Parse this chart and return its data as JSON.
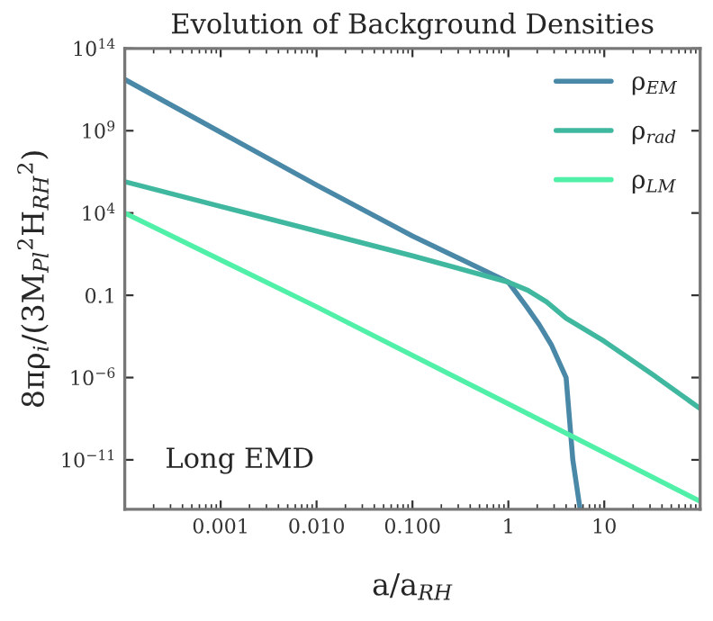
{
  "chart_data": {
    "type": "line",
    "title": "Evolution of Background Densities",
    "xlabel": "a/a$_{RH}$",
    "ylabel": "8πρ$_{i}$/(3M$_{Pl}$$^{2}$H$_{RH}$$^{2}$)",
    "log": "xy",
    "grid": false,
    "legend": "top right",
    "line_style": "solid",
    "marker": "none",
    "xlim": [
      0.0001,
      100
    ],
    "xticks": [
      {
        "value": 0.001,
        "label": "0.001"
      },
      {
        "value": 0.01,
        "label": "0.010"
      },
      {
        "value": 0.1,
        "label": "0.100"
      },
      1,
      10
    ],
    "ylim": [
      1e-14,
      100000000000000.0
    ],
    "yticks": [
      {
        "value": 100000000000000.0,
        "label": "10$^{14}$"
      },
      {
        "value": 1000000000.0,
        "label": "10$^{9}$"
      },
      {
        "value": 10000.0,
        "label": "10$^{4}$"
      },
      0.1,
      {
        "value": 1e-06,
        "label": "10$^{−6}$"
      },
      {
        "value": 1e-11,
        "label": "10$^{−11}$"
      }
    ],
    "annotations": [
      "Long EMD"
    ],
    "series": [
      {
        "name": "ρ$_{EM}$",
        "color": "#4a88a8",
        "x": [
          0.0001,
          0.001,
          0.01,
          0.1,
          0.316,
          1,
          1.55,
          2.1,
          2.8,
          4.0,
          4.7,
          5.6
        ],
        "values": [
          1300000000000.0,
          800000000.0,
          500000.0,
          400.0,
          16.0,
          0.63,
          0.02,
          0.0016,
          0.0001,
          1e-06,
          1e-11,
          1e-14
        ]
      },
      {
        "name": "ρ$_{rad}$",
        "color": "#40b8a0",
        "x": [
          0.0001,
          0.001,
          0.01,
          0.1,
          1,
          1.6,
          2.5,
          4,
          10,
          31.6,
          100
        ],
        "values": [
          800000.0,
          25000.0,
          800.0,
          25,
          0.63,
          0.2,
          0.04,
          0.004,
          0.00016,
          1.6e-06,
          1.3e-08
        ]
      },
      {
        "name": "ρ$_{LM}$",
        "color": "#50f0a8",
        "x": [
          0.0001,
          0.01,
          1,
          100
        ],
        "values": [
          10000.0,
          0.02,
          2.5e-08,
          3e-14
        ]
      }
    ]
  }
}
